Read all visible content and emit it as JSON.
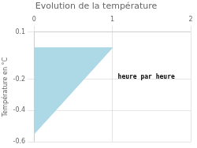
{
  "chart_data": {
    "type": "polygon",
    "title": "Evolution de la température",
    "ylabel": "Température en °C",
    "annotation": "heure par heure",
    "x": [
      0,
      0,
      1
    ],
    "values": [
      0,
      -0.55,
      0
    ],
    "color": "#add8e6",
    "xlim": [
      0,
      2
    ],
    "ylim": [
      -0.6,
      0.1
    ],
    "xticks": [
      0,
      1,
      2
    ],
    "yticks": [
      0.1,
      -0.2,
      -0.4,
      -0.6
    ],
    "grid": true
  }
}
